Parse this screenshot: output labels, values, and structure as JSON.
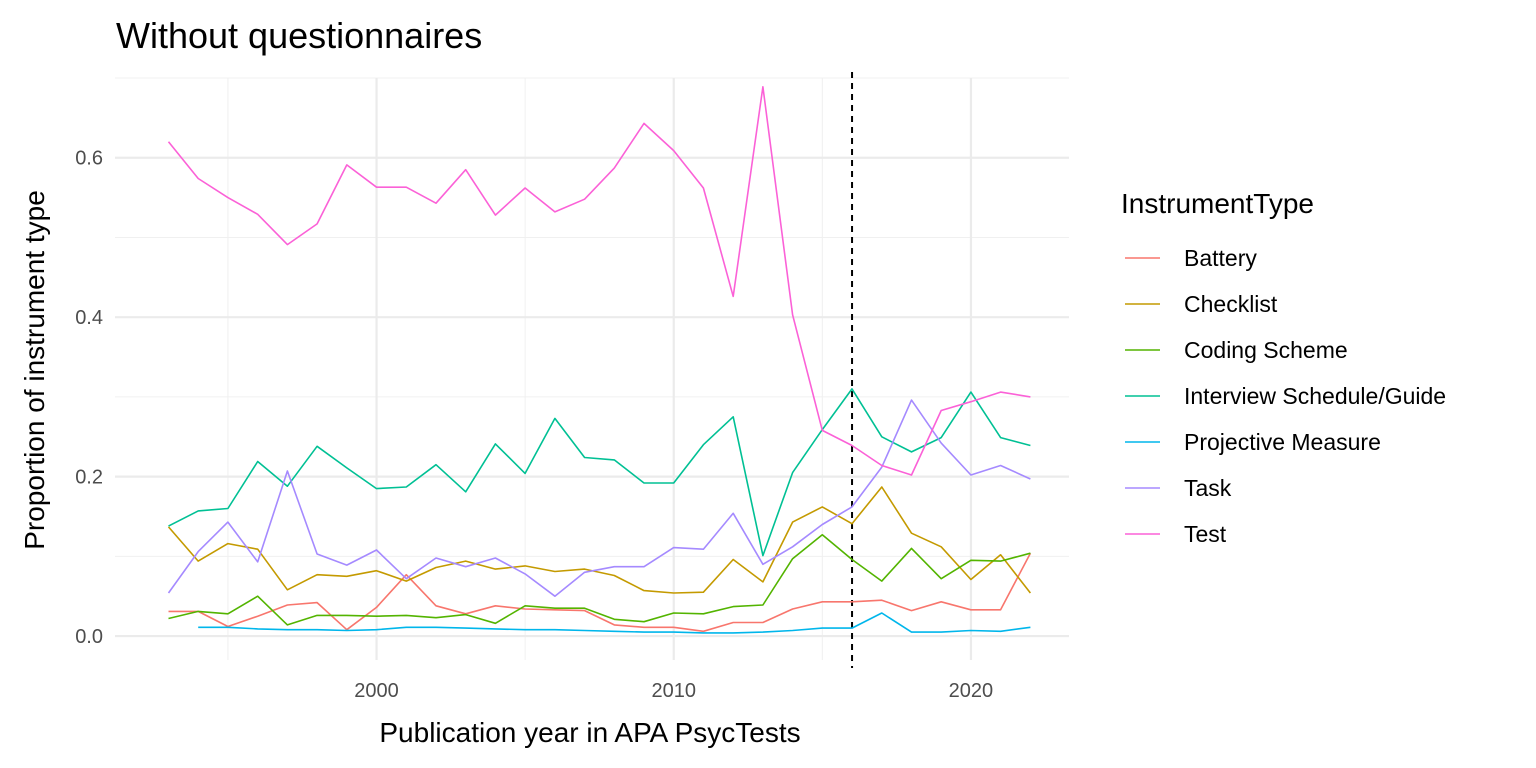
{
  "chart_data": {
    "type": "line",
    "title": "Without questionnaires",
    "xlabel": "Publication year in APA PsycTests",
    "ylabel": "Proportion of instrument type",
    "xlim": [
      1991.2,
      2023.3
    ],
    "ylim": [
      -0.03,
      0.7
    ],
    "x_ticks": [
      2000,
      2010,
      2020
    ],
    "x_tick_labels": [
      "2000",
      "2010",
      "2020"
    ],
    "y_ticks": [
      0.0,
      0.2,
      0.4,
      0.6
    ],
    "y_tick_labels": [
      "0.0",
      "0.2",
      "0.4",
      "0.6"
    ],
    "grid": true,
    "reference_line": {
      "x": 2016,
      "style": "dashed"
    },
    "legend": {
      "title": "InstrumentType",
      "position": "right"
    },
    "series": [
      {
        "name": "Battery",
        "color": "#F8766D",
        "x": [
          1993,
          1994,
          1995,
          1996,
          1997,
          1998,
          1999,
          2000,
          2001,
          2002,
          2003,
          2004,
          2005,
          2006,
          2007,
          2008,
          2009,
          2010,
          2011,
          2012,
          2013,
          2014,
          2015,
          2016,
          2017,
          2018,
          2019,
          2020,
          2021,
          2022
        ],
        "y": [
          0.031,
          0.031,
          0.012,
          0.025,
          0.039,
          0.042,
          0.008,
          0.036,
          0.077,
          0.038,
          0.028,
          0.038,
          0.034,
          0.033,
          0.032,
          0.014,
          0.011,
          0.011,
          0.006,
          0.017,
          0.017,
          0.034,
          0.043,
          0.043,
          0.045,
          0.032,
          0.043,
          0.033,
          0.033,
          0.104
        ]
      },
      {
        "name": "Checklist",
        "color": "#C49A00",
        "x": [
          1993,
          1994,
          1995,
          1996,
          1997,
          1998,
          1999,
          2000,
          2001,
          2002,
          2003,
          2004,
          2005,
          2006,
          2007,
          2008,
          2009,
          2010,
          2011,
          2012,
          2013,
          2014,
          2015,
          2016,
          2017,
          2018,
          2019,
          2020,
          2021,
          2022
        ],
        "y": [
          0.137,
          0.094,
          0.116,
          0.109,
          0.058,
          0.077,
          0.075,
          0.082,
          0.069,
          0.086,
          0.094,
          0.084,
          0.088,
          0.081,
          0.084,
          0.076,
          0.057,
          0.054,
          0.055,
          0.096,
          0.068,
          0.143,
          0.162,
          0.141,
          0.187,
          0.129,
          0.112,
          0.071,
          0.102,
          0.054
        ]
      },
      {
        "name": "Coding Scheme",
        "color": "#53B400",
        "x": [
          1993,
          1994,
          1995,
          1996,
          1997,
          1998,
          1999,
          2000,
          2001,
          2002,
          2003,
          2004,
          2005,
          2006,
          2007,
          2008,
          2009,
          2010,
          2011,
          2012,
          2013,
          2014,
          2015,
          2016,
          2017,
          2018,
          2019,
          2020,
          2021,
          2022
        ],
        "y": [
          0.022,
          0.031,
          0.028,
          0.05,
          0.014,
          0.026,
          0.026,
          0.025,
          0.026,
          0.023,
          0.027,
          0.016,
          0.038,
          0.035,
          0.035,
          0.021,
          0.018,
          0.029,
          0.028,
          0.037,
          0.039,
          0.097,
          0.127,
          0.096,
          0.069,
          0.11,
          0.072,
          0.095,
          0.094,
          0.104
        ]
      },
      {
        "name": "Interview Schedule/Guide",
        "color": "#00C094",
        "x": [
          1993,
          1994,
          1995,
          1996,
          1997,
          1998,
          1999,
          2000,
          2001,
          2002,
          2003,
          2004,
          2005,
          2006,
          2007,
          2008,
          2009,
          2010,
          2011,
          2012,
          2013,
          2014,
          2015,
          2016,
          2017,
          2018,
          2019,
          2020,
          2021,
          2022
        ],
        "y": [
          0.138,
          0.157,
          0.16,
          0.219,
          0.188,
          0.238,
          0.211,
          0.185,
          0.187,
          0.215,
          0.181,
          0.241,
          0.204,
          0.273,
          0.224,
          0.221,
          0.192,
          0.192,
          0.24,
          0.275,
          0.101,
          0.205,
          0.259,
          0.31,
          0.25,
          0.231,
          0.249,
          0.306,
          0.249,
          0.239
        ]
      },
      {
        "name": "Projective Measure",
        "color": "#00B6EB",
        "x": [
          1994,
          1995,
          1996,
          1997,
          1998,
          1999,
          2000,
          2001,
          2002,
          2003,
          2004,
          2005,
          2006,
          2007,
          2008,
          2009,
          2010,
          2011,
          2012,
          2013,
          2014,
          2015,
          2016,
          2017,
          2018,
          2019,
          2020,
          2021,
          2022
        ],
        "y": [
          0.011,
          0.011,
          0.009,
          0.008,
          0.008,
          0.007,
          0.008,
          0.011,
          0.011,
          0.01,
          0.009,
          0.008,
          0.008,
          0.007,
          0.006,
          0.005,
          0.005,
          0.004,
          0.004,
          0.005,
          0.007,
          0.01,
          0.01,
          0.029,
          0.005,
          0.005,
          0.007,
          0.006,
          0.011
        ]
      },
      {
        "name": "Task",
        "color": "#A58AFF",
        "x": [
          1993,
          1994,
          1995,
          1996,
          1997,
          1998,
          1999,
          2000,
          2001,
          2002,
          2003,
          2004,
          2005,
          2006,
          2007,
          2008,
          2009,
          2010,
          2011,
          2012,
          2013,
          2014,
          2015,
          2016,
          2017,
          2018,
          2019,
          2020,
          2021,
          2022
        ],
        "y": [
          0.054,
          0.106,
          0.143,
          0.093,
          0.207,
          0.103,
          0.089,
          0.108,
          0.072,
          0.098,
          0.087,
          0.098,
          0.078,
          0.05,
          0.08,
          0.087,
          0.087,
          0.111,
          0.109,
          0.154,
          0.09,
          0.112,
          0.14,
          0.162,
          0.212,
          0.296,
          0.242,
          0.202,
          0.214,
          0.197
        ]
      },
      {
        "name": "Test",
        "color": "#FB61D7",
        "x": [
          1993,
          1994,
          1995,
          1996,
          1997,
          1998,
          1999,
          2000,
          2001,
          2002,
          2003,
          2004,
          2005,
          2006,
          2007,
          2008,
          2009,
          2010,
          2011,
          2012,
          2013,
          2014,
          2015,
          2016,
          2017,
          2018,
          2019,
          2020,
          2021,
          2022
        ],
        "y": [
          0.62,
          0.574,
          0.55,
          0.529,
          0.491,
          0.517,
          0.591,
          0.563,
          0.563,
          0.543,
          0.585,
          0.528,
          0.562,
          0.532,
          0.548,
          0.587,
          0.643,
          0.609,
          0.562,
          0.426,
          0.689,
          0.403,
          0.258,
          0.239,
          0.214,
          0.202,
          0.283,
          0.294,
          0.306,
          0.3
        ]
      }
    ]
  }
}
